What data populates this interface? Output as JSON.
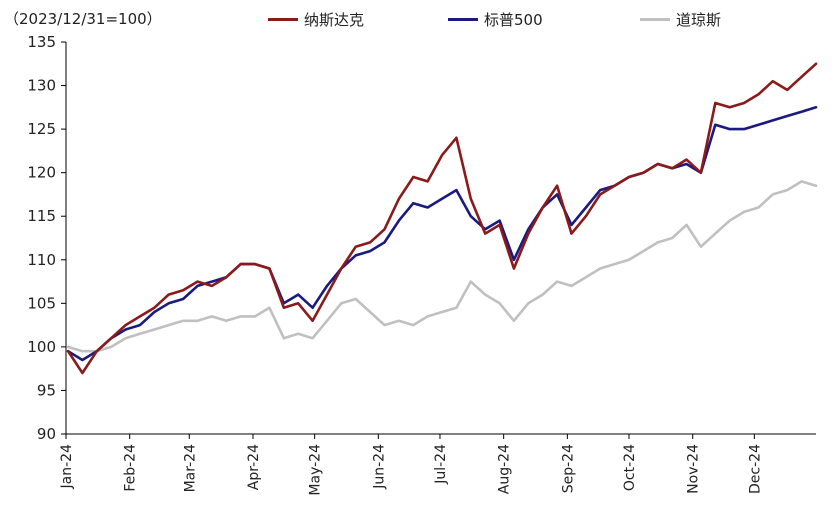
{
  "chart_data": {
    "type": "line",
    "unit_label": "（2023/12/31=100）",
    "ylim": [
      90,
      135
    ],
    "yticks": [
      90,
      95,
      100,
      105,
      110,
      115,
      120,
      125,
      130,
      135
    ],
    "x_ticks": [
      "Jan-24",
      "Feb-24",
      "Mar-24",
      "Apr-24",
      "May-24",
      "Jun-24",
      "Jul-24",
      "Aug-24",
      "Sep-24",
      "Oct-24",
      "Nov-24",
      "Dec-24"
    ],
    "x": [
      "2024-01-02",
      "2024-01-09",
      "2024-01-16",
      "2024-01-23",
      "2024-01-30",
      "2024-02-06",
      "2024-02-13",
      "2024-02-20",
      "2024-02-27",
      "2024-03-05",
      "2024-03-12",
      "2024-03-19",
      "2024-03-26",
      "2024-04-02",
      "2024-04-09",
      "2024-04-16",
      "2024-04-23",
      "2024-04-30",
      "2024-05-07",
      "2024-05-14",
      "2024-05-21",
      "2024-05-28",
      "2024-06-04",
      "2024-06-11",
      "2024-06-18",
      "2024-06-25",
      "2024-07-02",
      "2024-07-09",
      "2024-07-16",
      "2024-07-23",
      "2024-07-30",
      "2024-08-06",
      "2024-08-13",
      "2024-08-20",
      "2024-08-27",
      "2024-09-03",
      "2024-09-10",
      "2024-09-17",
      "2024-09-24",
      "2024-10-01",
      "2024-10-08",
      "2024-10-15",
      "2024-10-22",
      "2024-10-29",
      "2024-11-05",
      "2024-11-12",
      "2024-11-19",
      "2024-11-26",
      "2024-12-03",
      "2024-12-10",
      "2024-12-17",
      "2024-12-24",
      "2024-12-31"
    ],
    "legend_position": "top",
    "grid": false,
    "series": [
      {
        "name": "纳斯达克",
        "color": "#8b1a1a",
        "values": [
          99.5,
          97.0,
          99.5,
          101.0,
          102.5,
          103.5,
          104.5,
          106.0,
          106.5,
          107.5,
          107.0,
          108.0,
          109.5,
          109.5,
          109.0,
          104.5,
          105.0,
          103.0,
          106.0,
          109.0,
          111.5,
          112.0,
          113.5,
          117.0,
          119.5,
          119.0,
          122.0,
          124.0,
          117.0,
          113.0,
          114.0,
          109.0,
          113.0,
          116.0,
          118.5,
          113.0,
          115.0,
          117.5,
          118.5,
          119.5,
          120.0,
          121.0,
          120.5,
          121.5,
          120.0,
          128.0,
          127.5,
          128.0,
          129.0,
          130.5,
          129.5,
          131.0,
          132.5
        ]
      },
      {
        "name": "标普500",
        "color": "#1a1a80",
        "values": [
          99.5,
          98.5,
          99.5,
          101.0,
          102.0,
          102.5,
          104.0,
          105.0,
          105.5,
          107.0,
          107.5,
          108.0,
          109.5,
          109.5,
          109.0,
          105.0,
          106.0,
          104.5,
          107.0,
          109.0,
          110.5,
          111.0,
          112.0,
          114.5,
          116.5,
          116.0,
          117.0,
          118.0,
          115.0,
          113.5,
          114.5,
          110.0,
          113.5,
          116.0,
          117.5,
          114.0,
          116.0,
          118.0,
          118.5,
          119.5,
          120.0,
          121.0,
          120.5,
          121.0,
          120.0,
          125.5,
          125.0,
          125.0,
          125.5,
          126.0,
          126.5,
          127.0,
          127.5
        ]
      },
      {
        "name": "道琼斯",
        "color": "#c0c0c0",
        "values": [
          100.0,
          99.5,
          99.5,
          100.0,
          101.0,
          101.5,
          102.0,
          102.5,
          103.0,
          103.0,
          103.5,
          103.0,
          103.5,
          103.5,
          104.5,
          101.0,
          101.5,
          101.0,
          103.0,
          105.0,
          105.5,
          104.0,
          102.5,
          103.0,
          102.5,
          103.5,
          104.0,
          104.5,
          107.5,
          106.0,
          105.0,
          103.0,
          105.0,
          106.0,
          107.5,
          107.0,
          108.0,
          109.0,
          109.5,
          110.0,
          111.0,
          112.0,
          112.5,
          114.0,
          111.5,
          113.0,
          114.5,
          115.5,
          116.0,
          117.5,
          118.0,
          119.0,
          118.5
        ]
      }
    ]
  }
}
